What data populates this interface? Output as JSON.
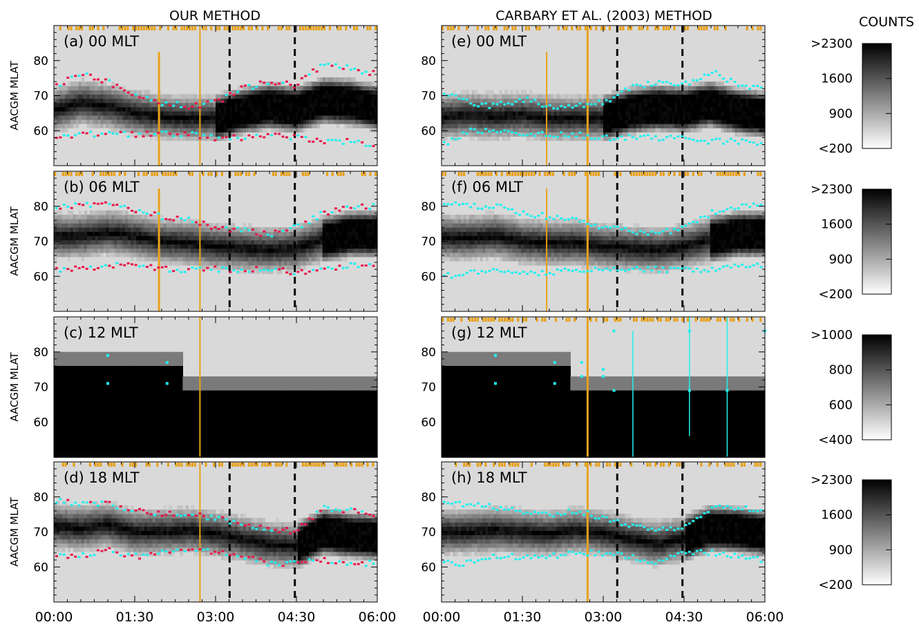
{
  "titles": {
    "left": "OUR METHOD",
    "right": "CARBARY ET AL. (2003) METHOD",
    "colorbar": "COUNTS"
  },
  "ylabel": "AACGM MLAT",
  "x_ticks": [
    "00:00",
    "01:30",
    "03:00",
    "04:30",
    "06:00"
  ],
  "y_ticks": [
    "60",
    "70",
    "80"
  ],
  "panels": [
    {
      "id": "a",
      "label": "(a) 00 MLT"
    },
    {
      "id": "b",
      "label": "(b) 06 MLT"
    },
    {
      "id": "c",
      "label": "(c) 12 MLT"
    },
    {
      "id": "d",
      "label": "(d) 18 MLT"
    },
    {
      "id": "e",
      "label": "(e) 00 MLT"
    },
    {
      "id": "f",
      "label": "(f) 06 MLT"
    },
    {
      "id": "g",
      "label": "(g) 12 MLT"
    },
    {
      "id": "h",
      "label": "(h) 18 MLT"
    }
  ],
  "colorbars": [
    {
      "top": ">2300",
      "t2": "1600",
      "t3": "900",
      "bottom": "<200"
    },
    {
      "top": ">2300",
      "t2": "1600",
      "t3": "900",
      "bottom": "<200"
    },
    {
      "top": ">1000",
      "t2": "800",
      "t3": "600",
      "bottom": "<400"
    },
    {
      "top": ">2300",
      "t2": "1600",
      "t3": "900",
      "bottom": "<200"
    }
  ],
  "colors": {
    "ours_boundary": "#e8174a",
    "carbary_boundary": "#22f0f0",
    "data_flag": "#e8a21c",
    "event_line": "#e8a21c",
    "dashed": "#000000"
  },
  "chart_data": [
    {
      "type": "heatmap",
      "panel": "a",
      "xlim": [
        "00:00",
        "06:00"
      ],
      "ylim": [
        50,
        90
      ],
      "poleward": [
        [
          0.05,
          73
        ],
        [
          0.5,
          76
        ],
        [
          1.0,
          74
        ],
        [
          1.5,
          70
        ],
        [
          2.0,
          68
        ],
        [
          2.5,
          67
        ],
        [
          3.0,
          68
        ],
        [
          3.5,
          72
        ],
        [
          4.0,
          74
        ],
        [
          4.5,
          73
        ],
        [
          5.0,
          79
        ],
        [
          5.5,
          78
        ],
        [
          6.0,
          76
        ]
      ],
      "equatorward": [
        [
          0.05,
          58
        ],
        [
          0.5,
          59
        ],
        [
          1.0,
          59
        ],
        [
          1.5,
          59
        ],
        [
          2.0,
          59
        ],
        [
          2.5,
          59
        ],
        [
          3.0,
          58
        ],
        [
          3.5,
          58
        ],
        [
          4.0,
          59
        ],
        [
          4.5,
          58
        ],
        [
          5.0,
          57
        ],
        [
          5.5,
          57
        ],
        [
          6.0,
          56
        ]
      ]
    },
    {
      "type": "heatmap",
      "panel": "b",
      "xlim": [
        "00:00",
        "06:00"
      ],
      "ylim": [
        50,
        90
      ],
      "poleward": [
        [
          0.05,
          80
        ],
        [
          0.5,
          80
        ],
        [
          1.0,
          81
        ],
        [
          1.5,
          79
        ],
        [
          2.0,
          77
        ],
        [
          2.5,
          76
        ],
        [
          3.0,
          74
        ],
        [
          3.5,
          73
        ],
        [
          4.0,
          72
        ],
        [
          4.5,
          74
        ],
        [
          5.0,
          78
        ],
        [
          5.5,
          80
        ],
        [
          6.0,
          80
        ]
      ],
      "equatorward": [
        [
          0.05,
          62
        ],
        [
          0.5,
          62
        ],
        [
          1.0,
          63
        ],
        [
          1.5,
          63
        ],
        [
          2.0,
          62
        ],
        [
          2.5,
          62
        ],
        [
          3.0,
          62
        ],
        [
          3.5,
          62
        ],
        [
          4.0,
          62
        ],
        [
          4.5,
          61
        ],
        [
          5.0,
          62
        ],
        [
          5.5,
          63
        ],
        [
          6.0,
          63
        ]
      ]
    },
    {
      "type": "heatmap",
      "panel": "c",
      "xlim": [
        "00:00",
        "06:00"
      ],
      "ylim": [
        50,
        90
      ],
      "poleward": [
        [
          1.0,
          79
        ],
        [
          2.1,
          77
        ]
      ],
      "equatorward": [
        [
          1.0,
          71
        ],
        [
          2.1,
          71
        ]
      ]
    },
    {
      "type": "heatmap",
      "panel": "d",
      "xlim": [
        "00:00",
        "06:00"
      ],
      "ylim": [
        50,
        90
      ],
      "poleward": [
        [
          0.05,
          79
        ],
        [
          0.5,
          78
        ],
        [
          1.0,
          78
        ],
        [
          1.5,
          76
        ],
        [
          2.0,
          75
        ],
        [
          2.5,
          75
        ],
        [
          3.0,
          74
        ],
        [
          3.5,
          72
        ],
        [
          4.0,
          71
        ],
        [
          4.5,
          70
        ],
        [
          5.0,
          77
        ],
        [
          5.5,
          76
        ],
        [
          6.0,
          75
        ]
      ],
      "equatorward": [
        [
          0.05,
          63
        ],
        [
          0.5,
          63
        ],
        [
          1.0,
          65
        ],
        [
          1.5,
          63
        ],
        [
          2.0,
          64
        ],
        [
          2.5,
          65
        ],
        [
          3.0,
          64
        ],
        [
          3.5,
          63
        ],
        [
          4.0,
          61
        ],
        [
          4.5,
          61
        ],
        [
          5.0,
          62
        ],
        [
          5.5,
          61
        ],
        [
          6.0,
          61
        ]
      ]
    },
    {
      "type": "heatmap",
      "panel": "e",
      "xlim": [
        "00:00",
        "06:00"
      ],
      "ylim": [
        50,
        90
      ],
      "poleward": [
        [
          0.05,
          71
        ],
        [
          0.5,
          68
        ],
        [
          1.0,
          67
        ],
        [
          1.5,
          69
        ],
        [
          2.0,
          67
        ],
        [
          2.5,
          67
        ],
        [
          3.0,
          68
        ],
        [
          3.5,
          72
        ],
        [
          4.0,
          74
        ],
        [
          4.5,
          73
        ],
        [
          5.0,
          77
        ],
        [
          5.5,
          73
        ],
        [
          6.0,
          72
        ]
      ],
      "equatorward": [
        [
          0.05,
          56
        ],
        [
          0.5,
          60
        ],
        [
          1.0,
          60
        ],
        [
          1.5,
          59
        ],
        [
          2.0,
          59
        ],
        [
          2.5,
          59
        ],
        [
          3.0,
          58
        ],
        [
          3.5,
          58
        ],
        [
          4.0,
          58
        ],
        [
          4.5,
          58
        ],
        [
          5.0,
          57
        ],
        [
          5.5,
          57
        ],
        [
          6.0,
          56
        ]
      ]
    },
    {
      "type": "heatmap",
      "panel": "f",
      "xlim": [
        "00:00",
        "06:00"
      ],
      "ylim": [
        50,
        90
      ],
      "poleward": [
        [
          0.05,
          81
        ],
        [
          0.5,
          80
        ],
        [
          1.0,
          80
        ],
        [
          1.5,
          78
        ],
        [
          2.0,
          77
        ],
        [
          2.5,
          76
        ],
        [
          3.0,
          74
        ],
        [
          3.5,
          73
        ],
        [
          4.0,
          72
        ],
        [
          4.5,
          74
        ],
        [
          5.0,
          78
        ],
        [
          5.5,
          80
        ],
        [
          6.0,
          80
        ]
      ],
      "equatorward": [
        [
          0.05,
          60
        ],
        [
          0.5,
          61
        ],
        [
          1.0,
          62
        ],
        [
          1.5,
          61
        ],
        [
          2.0,
          61
        ],
        [
          2.5,
          62
        ],
        [
          3.0,
          62
        ],
        [
          3.5,
          62
        ],
        [
          4.0,
          62
        ],
        [
          4.5,
          62
        ],
        [
          5.0,
          62
        ],
        [
          5.5,
          63
        ],
        [
          6.0,
          63
        ]
      ]
    },
    {
      "type": "heatmap",
      "panel": "g",
      "xlim": [
        "00:00",
        "06:00"
      ],
      "ylim": [
        50,
        90
      ],
      "poleward": [
        [
          1.0,
          79
        ],
        [
          2.1,
          77
        ],
        [
          2.6,
          77
        ],
        [
          3.0,
          75
        ],
        [
          3.2,
          86
        ],
        [
          4.6,
          86
        ],
        [
          6.0,
          86
        ]
      ],
      "equatorward": [
        [
          1.0,
          71
        ],
        [
          2.1,
          71
        ],
        [
          2.6,
          73
        ],
        [
          3.0,
          73
        ],
        [
          3.2,
          69
        ],
        [
          4.6,
          69
        ],
        [
          5.3,
          69
        ]
      ]
    },
    {
      "type": "heatmap",
      "panel": "h",
      "xlim": [
        "00:00",
        "06:00"
      ],
      "ylim": [
        50,
        90
      ],
      "poleward": [
        [
          0.05,
          78
        ],
        [
          0.5,
          78
        ],
        [
          1.0,
          77
        ],
        [
          1.5,
          76
        ],
        [
          2.0,
          75
        ],
        [
          2.5,
          76
        ],
        [
          3.0,
          74
        ],
        [
          3.5,
          72
        ],
        [
          4.0,
          71
        ],
        [
          4.5,
          71
        ],
        [
          5.0,
          77
        ],
        [
          5.5,
          77
        ],
        [
          6.0,
          76
        ]
      ],
      "equatorward": [
        [
          0.05,
          61
        ],
        [
          0.5,
          61
        ],
        [
          1.0,
          63
        ],
        [
          1.5,
          63
        ],
        [
          2.0,
          63
        ],
        [
          2.5,
          64
        ],
        [
          3.0,
          64
        ],
        [
          3.5,
          63
        ],
        [
          4.0,
          61
        ],
        [
          4.5,
          64
        ],
        [
          5.0,
          64
        ],
        [
          5.5,
          63
        ],
        [
          6.0,
          62
        ]
      ]
    }
  ]
}
